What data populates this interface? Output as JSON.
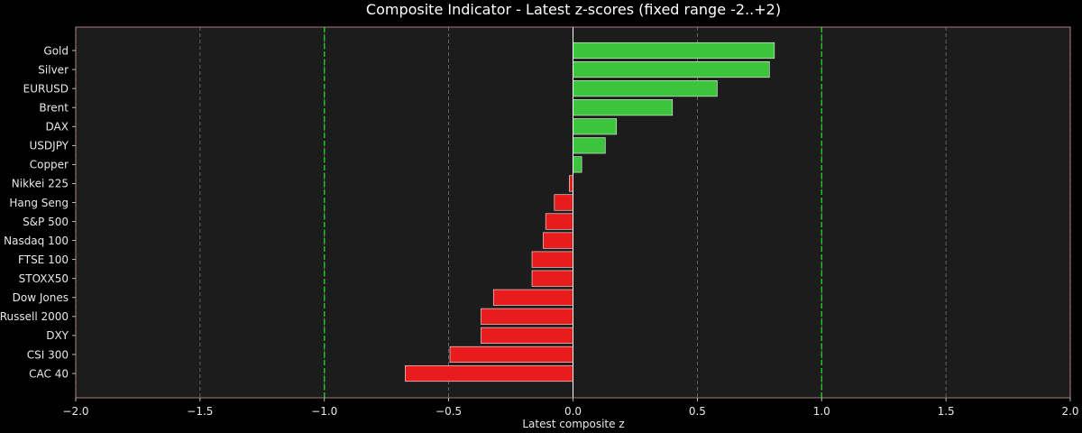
{
  "chart_data": {
    "type": "bar",
    "orientation": "horizontal",
    "title": "Composite Indicator - Latest z-scores (fixed range -2..+2)",
    "xlabel": "Latest composite z",
    "ylabel": "",
    "xlim": [
      -2.0,
      2.0
    ],
    "xticks": [
      -2.0,
      -1.5,
      -1.0,
      -0.5,
      0.0,
      0.5,
      1.0,
      1.5,
      2.0
    ],
    "xtick_labels": [
      "−2.0",
      "−1.5",
      "−1.0",
      "−0.5",
      "0.0",
      "0.5",
      "1.0",
      "1.5",
      "2.0"
    ],
    "threshold_lines": [
      -1.0,
      1.0
    ],
    "grid": "x",
    "categories": [
      "Gold",
      "Silver",
      "EURUSD",
      "Brent",
      "DAX",
      "USDJPY",
      "Copper",
      "Nikkei 225",
      "Hang Seng",
      "S&P 500",
      "Nasdaq 100",
      "FTSE 100",
      "STOXX50",
      "Dow Jones",
      "Russell 2000",
      "DXY",
      "CSI 300",
      "CAC 40"
    ],
    "values": [
      0.81,
      0.79,
      0.58,
      0.4,
      0.175,
      0.13,
      0.035,
      -0.015,
      -0.075,
      -0.11,
      -0.12,
      -0.165,
      -0.165,
      -0.32,
      -0.37,
      -0.37,
      -0.495,
      -0.675
    ],
    "colors": {
      "positive": "#3dc43d",
      "negative": "#e81c1c",
      "threshold": "#22cc22",
      "background": "#000000",
      "plot_background": "#1c1c1c",
      "grid": "#777777",
      "axes_frame": "#cc9999",
      "text": "#e8e8e8",
      "zero_line": "#ffffff"
    }
  }
}
